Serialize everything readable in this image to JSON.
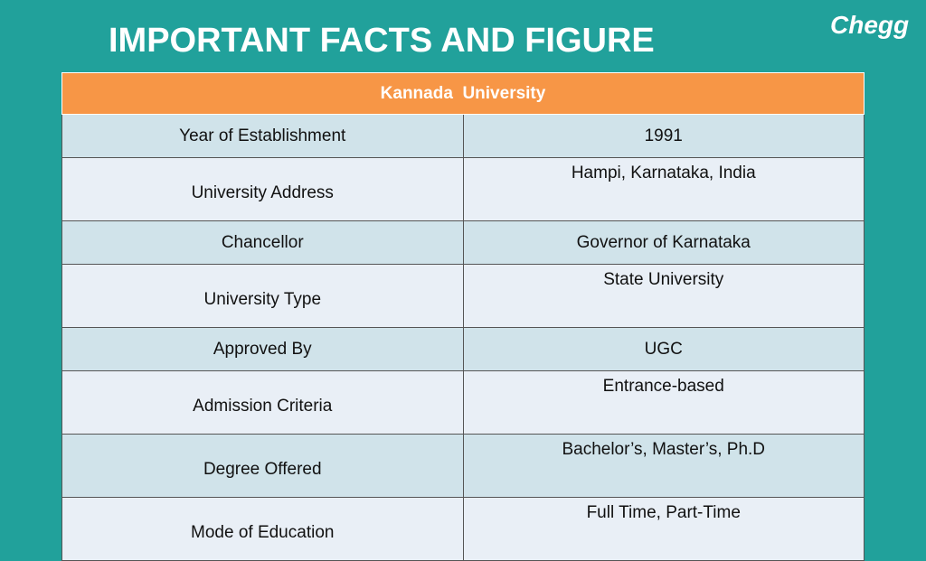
{
  "header": {
    "title": "IMPORTANT FACTS AND FIGURE",
    "logo": "Chegg"
  },
  "table": {
    "caption": "Kannada  University",
    "rows": [
      [
        "Year of Establishment",
        "1991"
      ],
      [
        "University Address",
        "Hampi, Karnataka, India"
      ],
      [
        "Chancellor",
        "Governor of Karnataka"
      ],
      [
        "University Type",
        "State University"
      ],
      [
        "Approved By",
        "UGC"
      ],
      [
        "Admission Criteria",
        "Entrance-based"
      ],
      [
        "Degree Offered",
        "Bachelor’s, Master’s, Ph.D"
      ],
      [
        "Mode of Education",
        "Full Time, Part-Time"
      ]
    ]
  }
}
